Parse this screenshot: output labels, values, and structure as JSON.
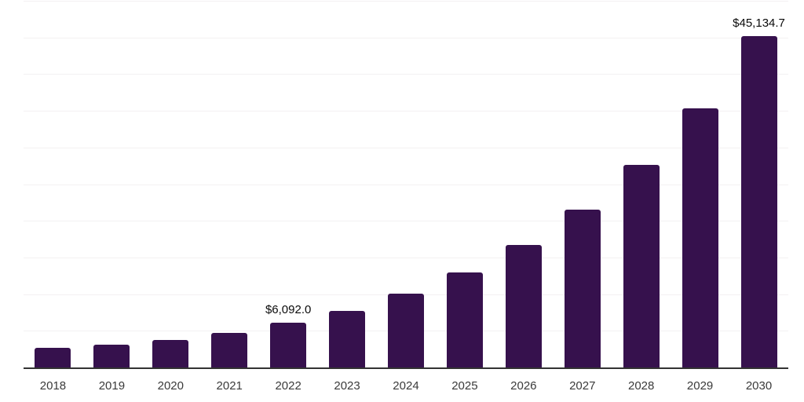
{
  "chart_data": {
    "type": "bar",
    "title": "",
    "xlabel": "",
    "ylabel": "",
    "categories": [
      "2018",
      "2019",
      "2020",
      "2021",
      "2022",
      "2023",
      "2024",
      "2025",
      "2026",
      "2027",
      "2028",
      "2029",
      "2030"
    ],
    "values": [
      2700,
      3090,
      3730,
      4740,
      6092.0,
      7760,
      10020,
      12970,
      16700,
      21500,
      27640,
      35360,
      45134.7
    ],
    "point_labels": [
      "",
      "",
      "",
      "",
      "$6,092.0",
      "",
      "",
      "",
      "",
      "",
      "",
      "",
      "$45,134.7"
    ],
    "ylim": [
      0,
      50000
    ],
    "gridline_step": 5000,
    "grid": true,
    "y_axis_tick_labels_visible": false,
    "legend_position": "none",
    "colors": {
      "bar": "#36114D",
      "gridline": "#f3f1f2",
      "axis_line": "#333333",
      "point_label_text": "#0a0a0a",
      "tick_label_text": "#3a3a3a",
      "background": "#ffffff"
    }
  }
}
